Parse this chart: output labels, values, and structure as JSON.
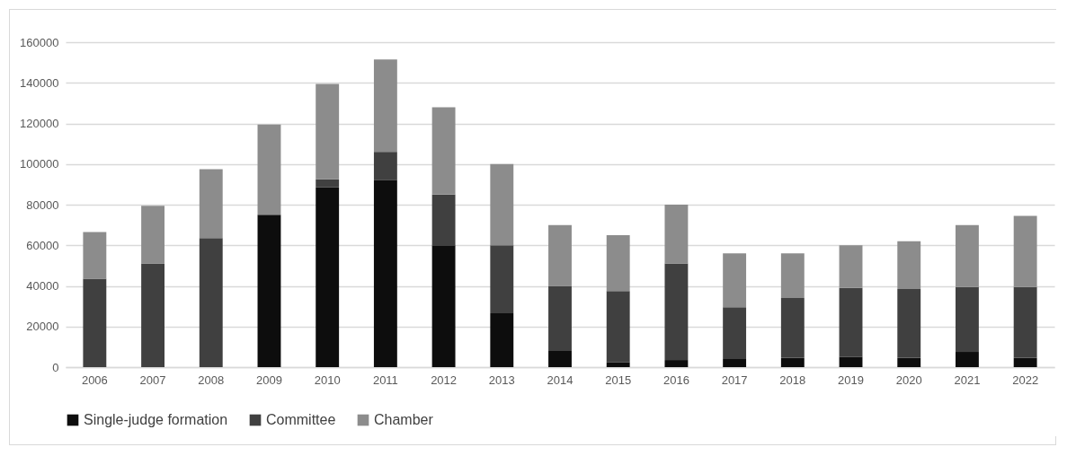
{
  "chart_data": {
    "type": "bar",
    "stacked": true,
    "categories": [
      "2006",
      "2007",
      "2008",
      "2009",
      "2010",
      "2011",
      "2012",
      "2013",
      "2014",
      "2015",
      "2016",
      "2017",
      "2018",
      "2019",
      "2020",
      "2021",
      "2022"
    ],
    "series": [
      {
        "name": "Single-judge formation",
        "color": "#0d0d0d",
        "values": [
          0,
          0,
          0,
          75000,
          88500,
          92000,
          60000,
          26500,
          8000,
          2500,
          3500,
          4000,
          4500,
          5000,
          4500,
          7500,
          4500
        ]
      },
      {
        "name": "Committee",
        "color": "#404040",
        "values": [
          43500,
          51000,
          63500,
          0,
          4000,
          14000,
          25000,
          33500,
          32000,
          35000,
          47500,
          25500,
          29500,
          34000,
          34000,
          32000,
          35000
        ]
      },
      {
        "name": "Chamber",
        "color": "#8c8c8c",
        "values": [
          23000,
          28500,
          34000,
          44500,
          47000,
          45500,
          43000,
          40000,
          30000,
          27500,
          29000,
          26500,
          22000,
          21000,
          23500,
          30500,
          35000
        ]
      }
    ],
    "ylim": [
      0,
      160000
    ],
    "yticks": [
      0,
      20000,
      40000,
      60000,
      80000,
      100000,
      120000,
      140000,
      160000
    ],
    "grid": "y",
    "legend": "bottom"
  }
}
